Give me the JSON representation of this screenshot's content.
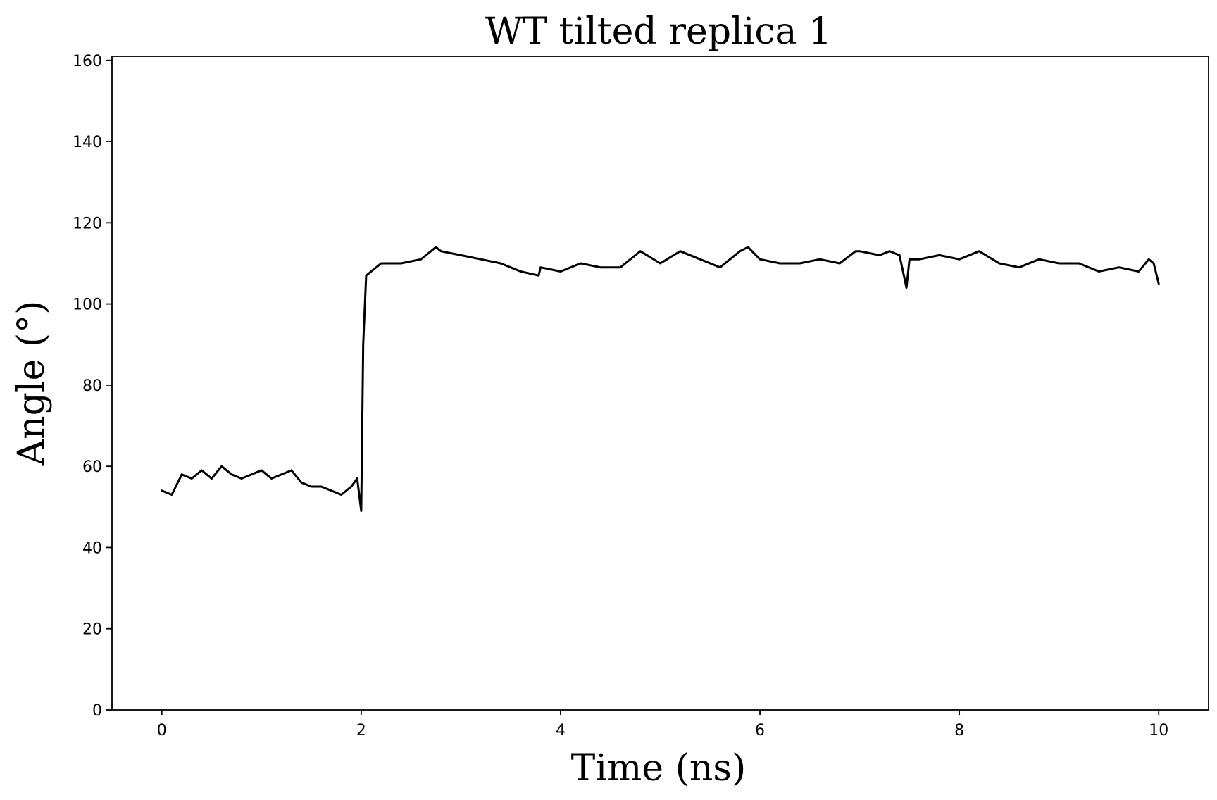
{
  "chart_data": {
    "type": "line",
    "title": "WT tilted replica 1",
    "xlabel": "Time (ns)",
    "ylabel": "Angle (°)",
    "xlim": [
      -0.5,
      10.5
    ],
    "ylim": [
      0,
      161
    ],
    "xticks": [
      0,
      2,
      4,
      6,
      8,
      10
    ],
    "yticks": [
      0,
      20,
      40,
      60,
      80,
      100,
      120,
      140,
      160
    ],
    "grid": false,
    "line_color": "#000000",
    "series": [
      {
        "x": [
          0,
          0.1,
          0.2,
          0.3,
          0.4,
          0.5,
          0.6,
          0.7,
          0.8,
          0.9,
          1.0,
          1.1,
          1.2,
          1.3,
          1.4,
          1.5,
          1.6,
          1.7,
          1.8,
          1.9,
          1.96,
          2.0,
          2.02,
          2.05,
          2.1,
          2.2,
          2.4,
          2.6,
          2.75,
          2.8,
          3.0,
          3.2,
          3.4,
          3.6,
          3.78,
          3.8,
          4.0,
          4.2,
          4.4,
          4.6,
          4.8,
          5.0,
          5.2,
          5.4,
          5.6,
          5.8,
          5.88,
          6.0,
          6.2,
          6.4,
          6.6,
          6.8,
          6.96,
          7.0,
          7.2,
          7.3,
          7.4,
          7.47,
          7.5,
          7.6,
          7.8,
          8.0,
          8.2,
          8.4,
          8.6,
          8.8,
          9.0,
          9.2,
          9.4,
          9.6,
          9.8,
          9.9,
          9.95,
          10.0
        ],
        "y": [
          54,
          53,
          58,
          57,
          59,
          57,
          60,
          58,
          57,
          58,
          59,
          57,
          58,
          59,
          56,
          55,
          55,
          54,
          53,
          55,
          57,
          49,
          90,
          107,
          108,
          110,
          110,
          111,
          114,
          113,
          112,
          111,
          110,
          108,
          107,
          109,
          108,
          110,
          109,
          109,
          113,
          110,
          113,
          111,
          109,
          113,
          114,
          111,
          110,
          110,
          111,
          110,
          113,
          113,
          112,
          113,
          112,
          104,
          111,
          111,
          112,
          111,
          113,
          110,
          109,
          111,
          110,
          110,
          108,
          109,
          108,
          111,
          110,
          105
        ]
      }
    ]
  }
}
